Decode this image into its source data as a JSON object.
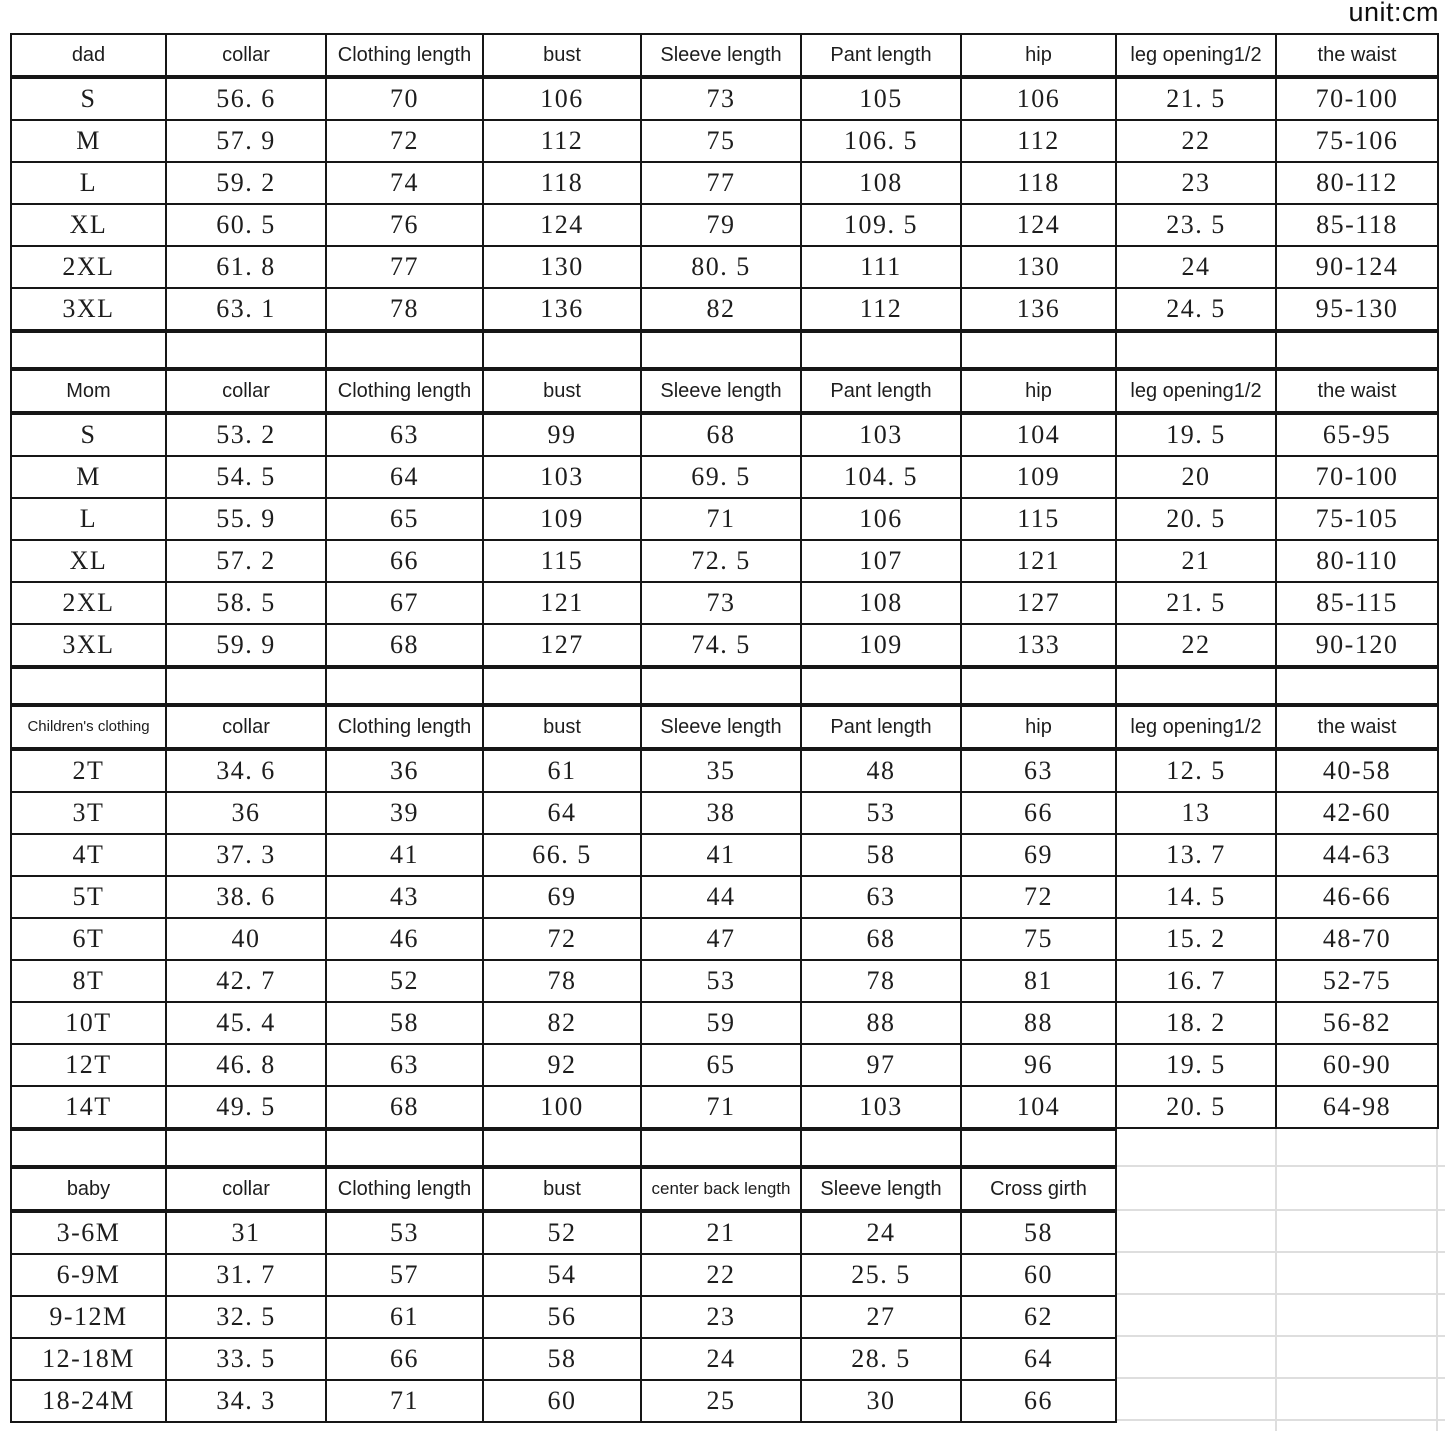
{
  "unit_label": "unit:cm",
  "colors": {
    "background": "#ffffff",
    "border": "#161616",
    "text": "#1d1d1d",
    "faint_grid": "#dedede"
  },
  "chart_data": [
    {
      "type": "table",
      "title": "dad",
      "columns": [
        "dad",
        "collar",
        "Clothing length",
        "bust",
        "Sleeve length",
        "Pant length",
        "hip",
        "leg opening1/2",
        "the waist"
      ],
      "rows": [
        [
          "S",
          "56. 6",
          "70",
          "106",
          "73",
          "105",
          "106",
          "21. 5",
          "70-100"
        ],
        [
          "M",
          "57. 9",
          "72",
          "112",
          "75",
          "106. 5",
          "112",
          "22",
          "75-106"
        ],
        [
          "L",
          "59. 2",
          "74",
          "118",
          "77",
          "108",
          "118",
          "23",
          "80-112"
        ],
        [
          "XL",
          "60. 5",
          "76",
          "124",
          "79",
          "109. 5",
          "124",
          "23. 5",
          "85-118"
        ],
        [
          "2XL",
          "61. 8",
          "77",
          "130",
          "80. 5",
          "111",
          "130",
          "24",
          "90-124"
        ],
        [
          "3XL",
          "63. 1",
          "78",
          "136",
          "82",
          "112",
          "136",
          "24. 5",
          "95-130"
        ]
      ]
    },
    {
      "type": "table",
      "title": "Mom",
      "columns": [
        "Mom",
        "collar",
        "Clothing length",
        "bust",
        "Sleeve length",
        "Pant length",
        "hip",
        "leg opening1/2",
        "the waist"
      ],
      "rows": [
        [
          "S",
          "53. 2",
          "63",
          "99",
          "68",
          "103",
          "104",
          "19. 5",
          "65-95"
        ],
        [
          "M",
          "54. 5",
          "64",
          "103",
          "69. 5",
          "104. 5",
          "109",
          "20",
          "70-100"
        ],
        [
          "L",
          "55. 9",
          "65",
          "109",
          "71",
          "106",
          "115",
          "20. 5",
          "75-105"
        ],
        [
          "XL",
          "57. 2",
          "66",
          "115",
          "72. 5",
          "107",
          "121",
          "21",
          "80-110"
        ],
        [
          "2XL",
          "58. 5",
          "67",
          "121",
          "73",
          "108",
          "127",
          "21. 5",
          "85-115"
        ],
        [
          "3XL",
          "59. 9",
          "68",
          "127",
          "74. 5",
          "109",
          "133",
          "22",
          "90-120"
        ]
      ]
    },
    {
      "type": "table",
      "title": "Children's clothing",
      "columns": [
        "Children's clothing",
        "collar",
        "Clothing length",
        "bust",
        "Sleeve length",
        "Pant length",
        "hip",
        "leg opening1/2",
        "the waist"
      ],
      "rows": [
        [
          "2T",
          "34. 6",
          "36",
          "61",
          "35",
          "48",
          "63",
          "12. 5",
          "40-58"
        ],
        [
          "3T",
          "36",
          "39",
          "64",
          "38",
          "53",
          "66",
          "13",
          "42-60"
        ],
        [
          "4T",
          "37. 3",
          "41",
          "66. 5",
          "41",
          "58",
          "69",
          "13. 7",
          "44-63"
        ],
        [
          "5T",
          "38. 6",
          "43",
          "69",
          "44",
          "63",
          "72",
          "14. 5",
          "46-66"
        ],
        [
          "6T",
          "40",
          "46",
          "72",
          "47",
          "68",
          "75",
          "15. 2",
          "48-70"
        ],
        [
          "8T",
          "42. 7",
          "52",
          "78",
          "53",
          "78",
          "81",
          "16. 7",
          "52-75"
        ],
        [
          "10T",
          "45. 4",
          "58",
          "82",
          "59",
          "88",
          "88",
          "18. 2",
          "56-82"
        ],
        [
          "12T",
          "46. 8",
          "63",
          "92",
          "65",
          "97",
          "96",
          "19. 5",
          "60-90"
        ],
        [
          "14T",
          "49. 5",
          "68",
          "100",
          "71",
          "103",
          "104",
          "20. 5",
          "64-98"
        ]
      ]
    },
    {
      "type": "table",
      "title": "baby",
      "columns": [
        "baby",
        "collar",
        "Clothing length",
        "bust",
        "center back length",
        "Sleeve length",
        "Cross girth"
      ],
      "rows": [
        [
          "3-6M",
          "31",
          "53",
          "52",
          "21",
          "24",
          "58"
        ],
        [
          "6-9M",
          "31. 7",
          "57",
          "54",
          "22",
          "25. 5",
          "60"
        ],
        [
          "9-12M",
          "32. 5",
          "61",
          "56",
          "23",
          "27",
          "62"
        ],
        [
          "12-18M",
          "33. 5",
          "66",
          "58",
          "24",
          "28. 5",
          "64"
        ],
        [
          "18-24M",
          "34. 3",
          "71",
          "60",
          "25",
          "30",
          "66"
        ]
      ]
    }
  ]
}
